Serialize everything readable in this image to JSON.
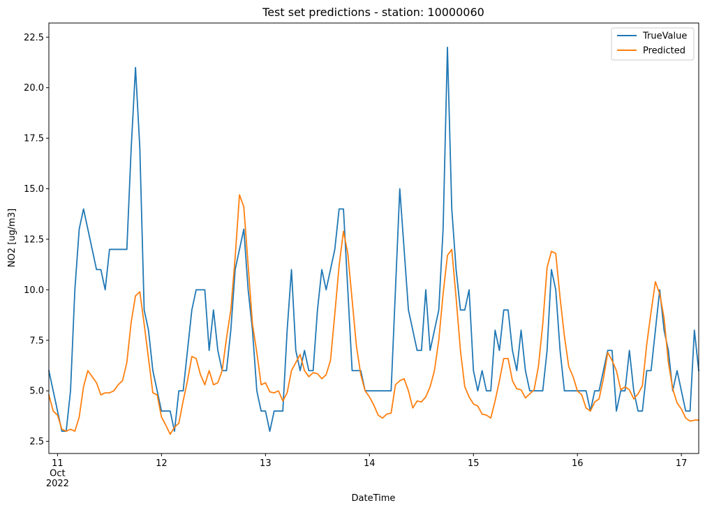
{
  "chart_data": {
    "type": "line",
    "title": "Test set predictions - station: 10000060",
    "xlabel": "DateTime",
    "ylabel": "NO2 [ug/m3]",
    "ylim": [
      1.9,
      23.2
    ],
    "yticks": [
      2.5,
      5.0,
      7.5,
      10.0,
      12.5,
      15.0,
      17.5,
      20.0,
      22.5
    ],
    "ytick_labels": [
      "2.5",
      "5.0",
      "7.5",
      "10.0",
      "12.5",
      "15.0",
      "17.5",
      "20.0",
      "22.5"
    ],
    "xlim": [
      0,
      150
    ],
    "x_unit": "hours from 2022-10-10 22:00",
    "xticks": [
      {
        "x": 2,
        "labels": [
          "11",
          "Oct",
          "2022"
        ]
      },
      {
        "x": 26,
        "labels": [
          "12"
        ]
      },
      {
        "x": 50,
        "labels": [
          "13"
        ]
      },
      {
        "x": 74,
        "labels": [
          "14"
        ]
      },
      {
        "x": 98,
        "labels": [
          "15"
        ]
      },
      {
        "x": 122,
        "labels": [
          "16"
        ]
      },
      {
        "x": 146,
        "labels": [
          "17"
        ]
      }
    ],
    "legend_position": "top-right",
    "grid": false,
    "series": [
      {
        "name": "TrueValue",
        "color": "#1f77b4",
        "x": [
          0,
          1,
          2,
          3,
          4,
          5,
          6,
          7,
          8,
          9,
          10,
          11,
          12,
          13,
          14,
          15,
          16,
          17,
          18,
          19,
          20,
          21,
          22,
          23,
          24,
          25,
          26,
          27,
          28,
          29,
          30,
          31,
          32,
          33,
          34,
          35,
          36,
          37,
          38,
          39,
          40,
          41,
          42,
          43,
          44,
          45,
          46,
          47,
          48,
          49,
          50,
          51,
          52,
          53,
          54,
          55,
          56,
          57,
          58,
          59,
          60,
          61,
          62,
          63,
          64,
          65,
          66,
          67,
          68,
          69,
          70,
          71,
          72,
          73,
          74,
          75,
          76,
          77,
          78,
          79,
          80,
          81,
          82,
          83,
          84,
          85,
          86,
          87,
          88,
          89,
          90,
          91,
          92,
          93,
          94,
          95,
          96,
          97,
          98,
          99,
          100,
          101,
          102,
          103,
          104,
          105,
          106,
          107,
          108,
          109,
          110,
          111,
          112,
          113,
          114,
          115,
          116,
          117,
          118,
          119,
          120,
          121,
          122,
          123,
          124,
          125,
          126,
          127,
          128,
          129,
          130,
          131,
          132,
          133,
          134,
          135,
          136,
          137,
          138,
          139,
          140,
          141,
          142,
          143,
          144,
          145,
          146,
          147,
          148,
          149,
          150
        ],
        "values": [
          6,
          5,
          4,
          3,
          3,
          5,
          10,
          13,
          14,
          13,
          12,
          11,
          11,
          10,
          12,
          12,
          12,
          12,
          12,
          17,
          21,
          17,
          9,
          8,
          6,
          5,
          4,
          4,
          4,
          3,
          5,
          5,
          7,
          9,
          10,
          10,
          10,
          7,
          9,
          7,
          6,
          6,
          8,
          11,
          12,
          13,
          10,
          8,
          5,
          4,
          4,
          3,
          4,
          4,
          4,
          8,
          11,
          7,
          6,
          7,
          6,
          6,
          9,
          11,
          10,
          11,
          12,
          14,
          14,
          10,
          6,
          6,
          6,
          5,
          5,
          5,
          5,
          5,
          5,
          5,
          10,
          15,
          12,
          9,
          8,
          7,
          7,
          10,
          7,
          8,
          9,
          13,
          22,
          14,
          11,
          9,
          9,
          10,
          6,
          5,
          6,
          5,
          5,
          8,
          7,
          9,
          9,
          7,
          6,
          8,
          6,
          5,
          5,
          5,
          5,
          7,
          11,
          10,
          7,
          5,
          5,
          5,
          5,
          5,
          5,
          4,
          5,
          5,
          6,
          7,
          7,
          4,
          5,
          5,
          7,
          5,
          4,
          4,
          6,
          6,
          8,
          10,
          8,
          7,
          5,
          6,
          5,
          4,
          4,
          8,
          6
        ]
      },
      {
        "name": "Predicted",
        "color": "#ff7f0e",
        "x": [
          0,
          1,
          2,
          3,
          4,
          5,
          6,
          7,
          8,
          9,
          10,
          11,
          12,
          13,
          14,
          15,
          16,
          17,
          18,
          19,
          20,
          21,
          22,
          23,
          24,
          25,
          26,
          27,
          28,
          29,
          30,
          31,
          32,
          33,
          34,
          35,
          36,
          37,
          38,
          39,
          40,
          41,
          42,
          43,
          44,
          45,
          46,
          47,
          48,
          49,
          50,
          51,
          52,
          53,
          54,
          55,
          56,
          57,
          58,
          59,
          60,
          61,
          62,
          63,
          64,
          65,
          66,
          67,
          68,
          69,
          70,
          71,
          72,
          73,
          74,
          75,
          76,
          77,
          78,
          79,
          80,
          81,
          82,
          83,
          84,
          85,
          86,
          87,
          88,
          89,
          90,
          91,
          92,
          93,
          94,
          95,
          96,
          97,
          98,
          99,
          100,
          101,
          102,
          103,
          104,
          105,
          106,
          107,
          108,
          109,
          110,
          111,
          112,
          113,
          114,
          115,
          116,
          117,
          118,
          119,
          120,
          121,
          122,
          123,
          124,
          125,
          126,
          127,
          128,
          129,
          130,
          131,
          132,
          133,
          134,
          135,
          136,
          137,
          138,
          139,
          140,
          141,
          142,
          143,
          144,
          145,
          146,
          147,
          148,
          149,
          150
        ],
        "values": [
          4.8,
          4.0,
          3.8,
          3.1,
          3.0,
          3.1,
          3.0,
          3.7,
          5.2,
          6.0,
          5.7,
          5.4,
          4.8,
          4.9,
          4.9,
          5.0,
          5.3,
          5.5,
          6.4,
          8.4,
          9.7,
          9.9,
          8.3,
          6.6,
          4.9,
          4.8,
          3.7,
          3.3,
          2.85,
          3.2,
          3.4,
          4.5,
          5.5,
          6.7,
          6.6,
          5.8,
          5.3,
          6.0,
          5.3,
          5.4,
          6.0,
          7.6,
          9.0,
          11.6,
          14.7,
          14.1,
          11.2,
          8.3,
          6.9,
          5.3,
          5.4,
          4.95,
          4.9,
          5.0,
          4.5,
          4.9,
          6.0,
          6.4,
          6.8,
          6.0,
          5.7,
          5.9,
          5.85,
          5.6,
          5.8,
          6.5,
          8.8,
          11.2,
          12.9,
          11.8,
          9.5,
          7.2,
          5.8,
          5.0,
          4.7,
          4.3,
          3.8,
          3.65,
          3.85,
          3.9,
          5.3,
          5.5,
          5.6,
          5.0,
          4.15,
          4.5,
          4.45,
          4.7,
          5.2,
          6.0,
          7.5,
          9.8,
          11.7,
          12.0,
          9.6,
          7.0,
          5.2,
          4.7,
          4.35,
          4.25,
          3.85,
          3.8,
          3.65,
          4.5,
          5.5,
          6.6,
          6.6,
          5.5,
          5.1,
          5.05,
          4.65,
          4.85,
          5.05,
          6.2,
          8.3,
          11.1,
          11.9,
          11.8,
          9.6,
          7.7,
          6.2,
          5.7,
          5.0,
          4.8,
          4.15,
          4.0,
          4.45,
          4.6,
          5.6,
          6.9,
          6.5,
          6.0,
          5.05,
          5.2,
          5.05,
          4.6,
          4.85,
          5.25,
          7.3,
          8.9,
          10.4,
          9.8,
          8.6,
          6.4,
          5.1,
          4.4,
          4.1,
          3.65,
          3.5,
          3.55,
          3.55
        ]
      }
    ]
  }
}
